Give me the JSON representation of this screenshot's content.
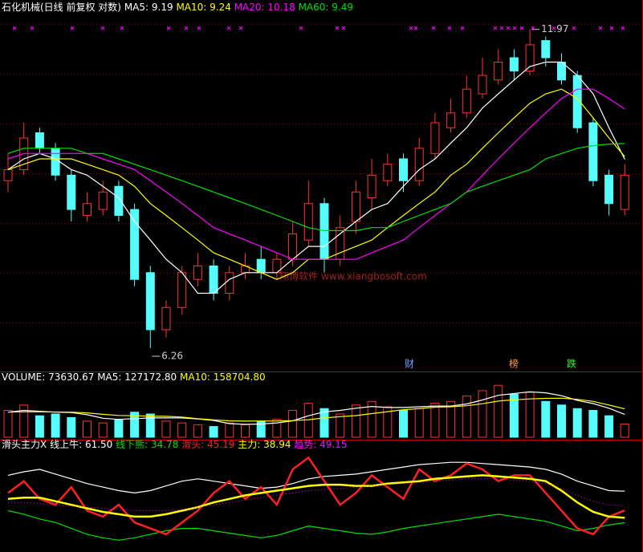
{
  "chart_data": [
    {
      "type": "candlestick",
      "title": "石化机械(日线 前复权 对数)",
      "log_scale": true,
      "ylim": [
        6.0,
        12.4
      ],
      "up_color": "#ff3232",
      "down_color": "#54fcfc",
      "open": [
        8.8,
        9.0,
        9.7,
        9.4,
        8.9,
        8.2,
        8.3,
        8.7,
        8.3,
        7.3,
        6.5,
        6.8,
        7.2,
        7.4,
        7.0,
        7.3,
        7.5,
        7.3,
        7.5,
        7.8,
        8.4,
        7.5,
        8.1,
        8.5,
        8.8,
        9.2,
        8.8,
        9.3,
        9.8,
        10.1,
        10.5,
        10.8,
        11.3,
        11.0,
        11.7,
        11.2,
        10.9,
        9.9,
        8.9,
        8.3
      ],
      "high": [
        9.3,
        9.9,
        9.8,
        9.5,
        9.0,
        8.6,
        8.8,
        8.8,
        8.4,
        7.4,
        6.9,
        7.4,
        7.6,
        7.5,
        7.4,
        7.6,
        7.7,
        7.6,
        8.1,
        8.8,
        8.5,
        8.2,
        8.8,
        9.2,
        9.3,
        9.3,
        9.6,
        10.1,
        10.4,
        10.9,
        11.3,
        11.5,
        11.5,
        11.97,
        11.8,
        11.4,
        11.0,
        10.0,
        9.0,
        9.1
      ],
      "low": [
        8.6,
        8.9,
        9.3,
        8.8,
        8.1,
        8.1,
        8.2,
        8.1,
        7.1,
        6.26,
        6.4,
        6.7,
        7.1,
        6.9,
        6.9,
        7.2,
        7.2,
        7.2,
        7.4,
        7.7,
        7.3,
        7.4,
        7.9,
        8.3,
        8.7,
        8.6,
        8.7,
        9.2,
        9.7,
        10.0,
        10.4,
        10.7,
        10.8,
        10.9,
        11.1,
        10.7,
        9.7,
        8.7,
        8.2,
        8.2
      ],
      "close": [
        9.0,
        9.6,
        9.4,
        8.9,
        8.3,
        8.4,
        8.6,
        8.2,
        7.2,
        6.5,
        6.8,
        7.3,
        7.4,
        7.0,
        7.3,
        7.4,
        7.3,
        7.5,
        7.9,
        8.4,
        7.5,
        8.0,
        8.6,
        8.9,
        9.1,
        8.8,
        9.4,
        9.9,
        10.1,
        10.6,
        10.9,
        11.2,
        11.0,
        11.6,
        11.3,
        10.8,
        9.8,
        8.8,
        8.4,
        8.9
      ],
      "series": [
        {
          "name": "MA5",
          "color": "#ffffff",
          "values": [
            9.0,
            9.2,
            9.3,
            9.2,
            9.0,
            8.9,
            8.7,
            8.5,
            8.1,
            7.8,
            7.5,
            7.3,
            7.0,
            7.0,
            7.2,
            7.3,
            7.3,
            7.3,
            7.5,
            7.7,
            7.7,
            7.9,
            8.1,
            8.3,
            8.4,
            8.7,
            9.0,
            9.2,
            9.5,
            9.8,
            10.2,
            10.5,
            10.8,
            11.1,
            11.2,
            11.2,
            10.9,
            10.5,
            9.8,
            9.19
          ]
        },
        {
          "name": "MA10",
          "color": "#ffff00",
          "values": [
            9.0,
            9.1,
            9.2,
            9.2,
            9.2,
            9.1,
            9.0,
            8.9,
            8.7,
            8.4,
            8.2,
            8.0,
            7.8,
            7.6,
            7.5,
            7.4,
            7.3,
            7.2,
            7.3,
            7.5,
            7.5,
            7.6,
            7.7,
            7.8,
            8.0,
            8.2,
            8.4,
            8.6,
            8.9,
            9.1,
            9.4,
            9.7,
            10.0,
            10.3,
            10.5,
            10.6,
            10.4,
            10.0,
            9.6,
            9.24
          ]
        },
        {
          "name": "MA20",
          "color": "#ff00ff",
          "values": [
            9.2,
            9.3,
            9.3,
            9.3,
            9.3,
            9.3,
            9.2,
            9.1,
            9.0,
            8.8,
            8.6,
            8.4,
            8.2,
            8.0,
            7.9,
            7.8,
            7.7,
            7.6,
            7.5,
            7.5,
            7.5,
            7.5,
            7.5,
            7.6,
            7.7,
            7.8,
            8.0,
            8.2,
            8.4,
            8.6,
            8.9,
            9.2,
            9.5,
            9.8,
            10.1,
            10.4,
            10.6,
            10.6,
            10.4,
            10.18
          ]
        },
        {
          "name": "MA60",
          "color": "#00e000",
          "values": [
            9.3,
            9.4,
            9.4,
            9.4,
            9.4,
            9.3,
            9.3,
            9.2,
            9.1,
            9.0,
            8.9,
            8.8,
            8.7,
            8.6,
            8.5,
            8.4,
            8.3,
            8.2,
            8.1,
            8.0,
            7.95,
            7.95,
            7.95,
            8.0,
            8.0,
            8.1,
            8.2,
            8.3,
            8.4,
            8.6,
            8.7,
            8.8,
            8.9,
            9.0,
            9.2,
            9.3,
            9.4,
            9.45,
            9.48,
            9.49
          ]
        }
      ],
      "annotations": [
        "财",
        "榜",
        "跌"
      ],
      "watermark": "翔博软件  www.xiangbosoft.com"
    },
    {
      "type": "bar",
      "title": "VOLUME",
      "ylim": [
        0,
        300000
      ],
      "values": [
        150000,
        180000,
        120000,
        130000,
        110000,
        90000,
        80000,
        100000,
        140000,
        130000,
        90000,
        80000,
        70000,
        60000,
        80000,
        70000,
        90000,
        100000,
        150000,
        190000,
        160000,
        130000,
        180000,
        200000,
        170000,
        150000,
        160000,
        190000,
        200000,
        230000,
        260000,
        290000,
        240000,
        250000,
        200000,
        180000,
        160000,
        150000,
        120000,
        73630.67
      ],
      "series": [
        {
          "name": "MA5",
          "color": "#ffffff",
          "values": [
            140000,
            150000,
            145000,
            140000,
            138000,
            126000,
            106000,
            100000,
            104000,
            108000,
            108000,
            108000,
            102000,
            94000,
            76000,
            72000,
            74000,
            80000,
            92000,
            120000,
            142000,
            150000,
            162000,
            172000,
            166000,
            166000,
            170000,
            174000,
            174000,
            186000,
            208000,
            234000,
            244000,
            254000,
            248000,
            232000,
            206000,
            188000,
            162000,
            127172.8
          ],
          "value_labels": [
            null,
            null,
            null,
            null,
            null,
            null,
            null,
            null,
            null,
            null,
            null,
            null,
            null,
            null,
            null,
            null,
            null,
            null,
            null,
            null,
            null,
            null,
            null,
            null,
            null,
            null,
            null,
            null,
            null,
            null,
            null,
            null,
            null,
            null,
            null,
            null,
            null,
            null,
            null,
            "127172.80"
          ]
        },
        {
          "name": "MA10",
          "color": "#ffff00",
          "values": [
            140000,
            142000,
            142000,
            141000,
            140000,
            136000,
            128000,
            122000,
            120000,
            118000,
            117000,
            113000,
            104000,
            97000,
            92000,
            90000,
            91000,
            91000,
            93000,
            98000,
            108000,
            115000,
            121000,
            132000,
            143000,
            154000,
            160000,
            168000,
            170000,
            176000,
            187000,
            202000,
            209000,
            214000,
            217000,
            218000,
            212000,
            200000,
            180000,
            158704.8
          ],
          "value_labels": [
            null,
            null,
            null,
            null,
            null,
            null,
            null,
            null,
            null,
            null,
            null,
            null,
            null,
            null,
            null,
            null,
            null,
            null,
            null,
            null,
            null,
            null,
            null,
            null,
            null,
            null,
            null,
            null,
            null,
            null,
            null,
            null,
            null,
            null,
            null,
            null,
            null,
            null,
            null,
            "158704.80"
          ]
        }
      ]
    },
    {
      "type": "line",
      "title": "滑头主力X",
      "ylim": [
        10,
        97
      ],
      "series": [
        {
          "name": "线上牛",
          "color": "#ffffff",
          "values": [
            75,
            78,
            80,
            76,
            72,
            68,
            65,
            62,
            60,
            62,
            66,
            70,
            72,
            70,
            68,
            66,
            64,
            65,
            68,
            72,
            74,
            75,
            76,
            78,
            80,
            82,
            84,
            85,
            86,
            86,
            85,
            84,
            83,
            82,
            80,
            76,
            70,
            66,
            62,
            61.5
          ],
          "value_labels": [
            null,
            null,
            null,
            null,
            null,
            null,
            null,
            null,
            null,
            null,
            null,
            null,
            null,
            null,
            null,
            null,
            null,
            null,
            null,
            null,
            null,
            null,
            null,
            null,
            null,
            null,
            null,
            null,
            null,
            null,
            null,
            null,
            null,
            null,
            null,
            null,
            null,
            null,
            null,
            "61.50"
          ]
        },
        {
          "name": "线下熊",
          "color": "#00e000",
          "values": [
            45,
            42,
            38,
            35,
            30,
            25,
            22,
            20,
            22,
            25,
            28,
            30,
            30,
            28,
            26,
            24,
            22,
            24,
            28,
            32,
            30,
            28,
            26,
            25,
            27,
            30,
            32,
            34,
            36,
            38,
            40,
            42,
            40,
            38,
            36,
            32,
            28,
            30,
            33,
            34.78
          ]
        },
        {
          "name": "滑头",
          "color": "#ff2020",
          "values": [
            60,
            70,
            55,
            50,
            65,
            45,
            40,
            50,
            35,
            30,
            25,
            35,
            45,
            60,
            70,
            55,
            65,
            50,
            80,
            90,
            70,
            50,
            60,
            75,
            65,
            55,
            80,
            70,
            75,
            85,
            80,
            70,
            75,
            75,
            60,
            45,
            30,
            25,
            40,
            45.19
          ]
        },
        {
          "name": "主力",
          "color": "#ffff00",
          "values": [
            55,
            56,
            56,
            53,
            50,
            47,
            44,
            42,
            40,
            40,
            42,
            45,
            48,
            52,
            55,
            58,
            60,
            62,
            64,
            66,
            67,
            67,
            66,
            66,
            68,
            69,
            70,
            72,
            73,
            74,
            75,
            74,
            73,
            72,
            70,
            62,
            52,
            44,
            40,
            38.94
          ]
        },
        {
          "name": "趋势",
          "color": "#ff00ff",
          "style": "dotted",
          "values": [
            52,
            52,
            51,
            50,
            49,
            48,
            47,
            46,
            45,
            45,
            45,
            46,
            48,
            50,
            52,
            54,
            56,
            58,
            60,
            62,
            63,
            64,
            65,
            66,
            67,
            68,
            69,
            70,
            71,
            72,
            72,
            72,
            71,
            70,
            68,
            64,
            58,
            53,
            50,
            49.15
          ]
        }
      ]
    }
  ]
}
